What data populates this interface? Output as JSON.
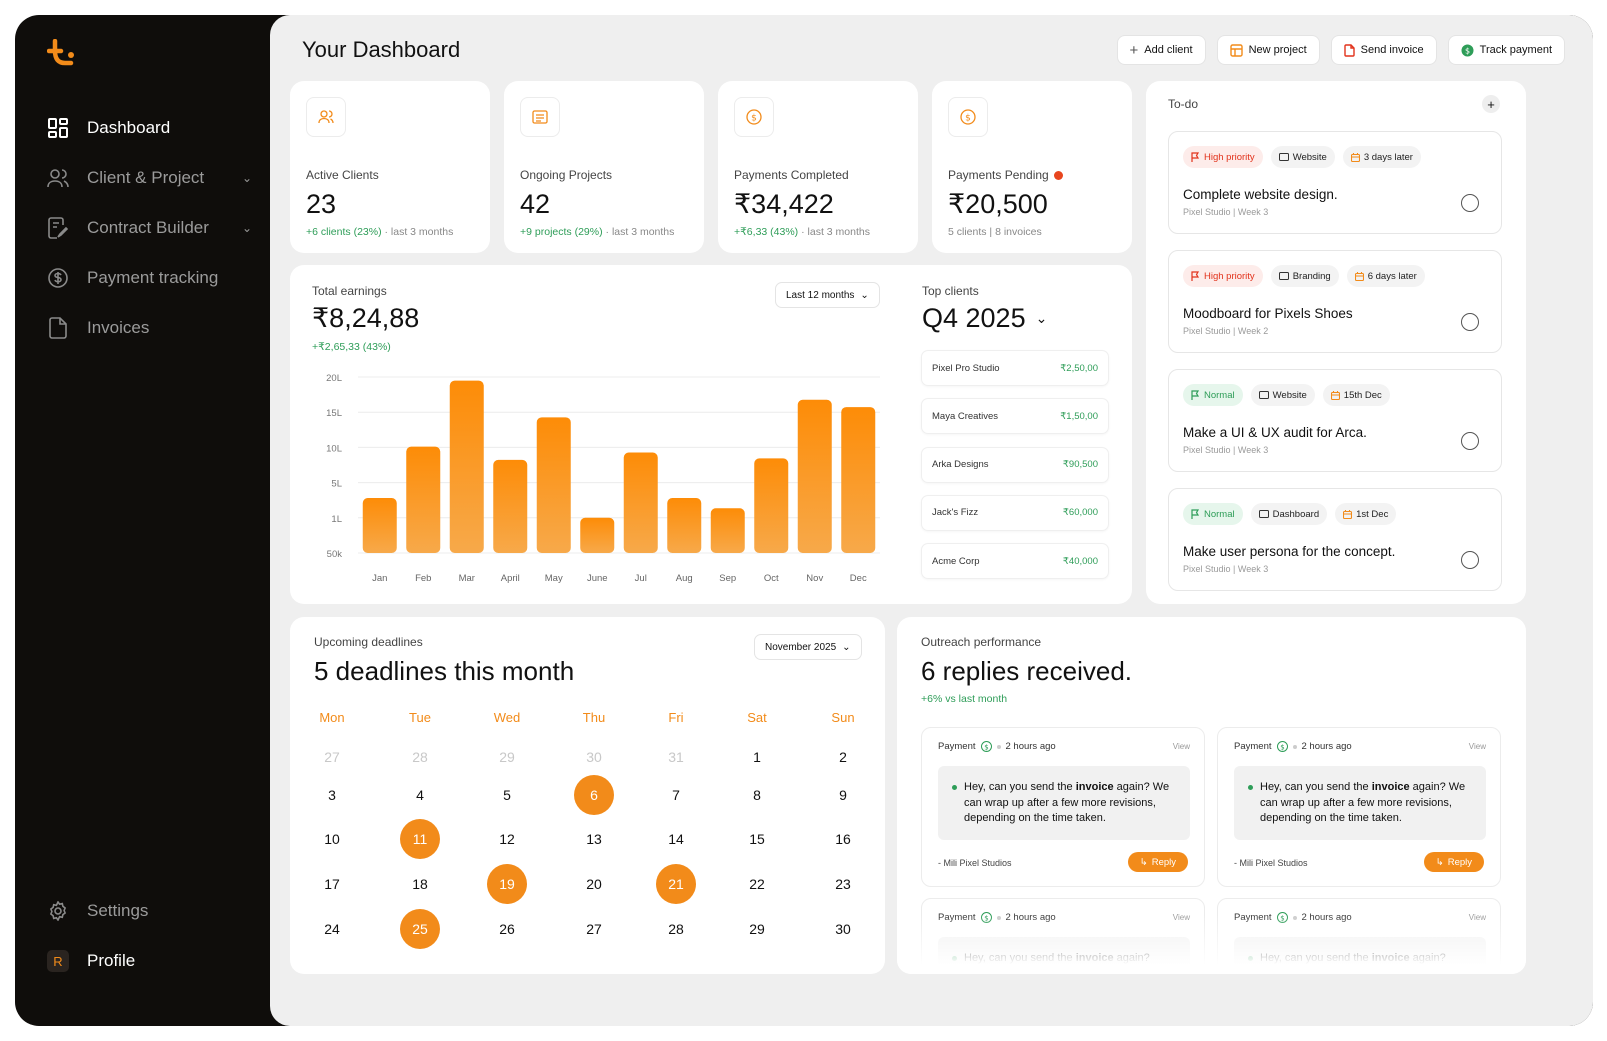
{
  "sidebar": {
    "items": [
      {
        "label": "Dashboard",
        "icon": "dashboard-icon"
      },
      {
        "label": "Client & Project",
        "icon": "users-icon"
      },
      {
        "label": "Contract Builder",
        "icon": "contract-icon"
      },
      {
        "label": "Payment tracking",
        "icon": "dollar-icon"
      },
      {
        "label": "Invoices",
        "icon": "file-icon"
      }
    ],
    "settings_label": "Settings",
    "profile_label": "Profile",
    "profile_initial": "R"
  },
  "header": {
    "title": "Your Dashboard",
    "actions": [
      "Add client",
      "New project",
      "Send invoice",
      "Track payment"
    ]
  },
  "stats": [
    {
      "label": "Active Clients",
      "value": "23",
      "delta": "+6 clients (23%)",
      "period": "last 3 months"
    },
    {
      "label": "Ongoing Projects",
      "value": "42",
      "delta": "+9 projects (29%)",
      "period": "last 3 months"
    },
    {
      "label": "Payments Completed",
      "value": "₹34,422",
      "delta": "+₹6,33 (43%)",
      "period": "last 3 months"
    },
    {
      "label": "Payments Pending",
      "value": "₹20,500",
      "note": "5 clients | 8 invoices"
    }
  ],
  "earnings": {
    "label": "Total earnings",
    "value": "₹8,24,88",
    "delta": "+₹2,65,33 (43%)",
    "range_select": "Last 12 months"
  },
  "chart_data": {
    "type": "bar",
    "categories": [
      "Jan",
      "Feb",
      "Mar",
      "April",
      "May",
      "June",
      "Jul",
      "Aug",
      "Sep",
      "Oct",
      "Nov",
      "Dec"
    ],
    "values": [
      3.5,
      10.5,
      19.5,
      8.7,
      14.5,
      0.8,
      9.7,
      3.5,
      2.1,
      8.9,
      16.9,
      15.9
    ],
    "yticks": [
      "50k",
      "1L",
      "5L",
      "10L",
      "15L",
      "20L"
    ],
    "ylim": [
      -4,
      20
    ],
    "grid": true,
    "colors": [
      "#fd8c07",
      "#f7a94a"
    ]
  },
  "top_clients": {
    "label": "Top clients",
    "period": "Q4 2025",
    "rows": [
      {
        "name": "Pixel Pro Studio",
        "amount": "₹2,50,00"
      },
      {
        "name": "Maya Creatives",
        "amount": "₹1,50,00"
      },
      {
        "name": "Arka Designs",
        "amount": "₹90,500"
      },
      {
        "name": "Jack's Fizz",
        "amount": "₹60,000"
      },
      {
        "name": "Acme Corp",
        "amount": "₹40,000"
      }
    ]
  },
  "todo": {
    "label": "To-do",
    "items": [
      {
        "priority": "High priority",
        "tag": "Website",
        "due": "3 days later",
        "title": "Complete website design.",
        "sub": "Pixel Studio | Week 3"
      },
      {
        "priority": "High priority",
        "tag": "Branding",
        "due": "6 days later",
        "title": "Moodboard for Pixels Shoes",
        "sub": "Pixel Studio | Week 2"
      },
      {
        "priority": "Normal",
        "tag": "Website",
        "due": "15th Dec",
        "title": "Make a UI & UX audit for Arca.",
        "sub": "Pixel Studio | Week 3"
      },
      {
        "priority": "Normal",
        "tag": "Dashboard",
        "due": "1st Dec",
        "title": "Make user persona for the concept.",
        "sub": "Pixel Studio | Week 3"
      }
    ]
  },
  "deadlines": {
    "label": "Upcoming deadlines",
    "title": "5 deadlines this month",
    "month_select": "November 2025",
    "weekdays": [
      "Mon",
      "Tue",
      "Wed",
      "Thu",
      "Fri",
      "Sat",
      "Sun"
    ],
    "weeks": [
      [
        "27",
        "28",
        "29",
        "30",
        "31",
        "1",
        "2"
      ],
      [
        "3",
        "4",
        "5",
        "6",
        "7",
        "8",
        "9"
      ],
      [
        "10",
        "11",
        "12",
        "13",
        "14",
        "15",
        "16"
      ],
      [
        "17",
        "18",
        "19",
        "20",
        "21",
        "22",
        "23"
      ],
      [
        "24",
        "25",
        "26",
        "27",
        "28",
        "29",
        "30"
      ]
    ],
    "muted": [
      "27",
      "28",
      "29",
      "30",
      "31"
    ],
    "highlighted": [
      "6",
      "11",
      "19",
      "21",
      "25"
    ]
  },
  "outreach": {
    "label": "Outreach performance",
    "title": "6 replies received.",
    "delta": "+6% vs last month",
    "messages": [
      {
        "type": "Payment",
        "time": "2 hours ago",
        "view": "View",
        "text_a": "Hey, can you send the ",
        "text_b": "invoice",
        "text_c": " again? We can wrap up after a few more revisions, depending on the time taken.",
        "from": "- Mili Pixel Studios",
        "reply": "Reply"
      },
      {
        "type": "Payment",
        "time": "2 hours ago",
        "view": "View",
        "text_a": "Hey, can you send the ",
        "text_b": "invoice",
        "text_c": " again? We can wrap up after a few more revisions, depending on the time taken.",
        "from": "- Mili Pixel Studios",
        "reply": "Reply"
      },
      {
        "type": "Payment",
        "time": "2 hours ago",
        "view": "View",
        "text_a": "Hey, can you send the ",
        "text_b": "invoice",
        "text_c": " again?",
        "from": "",
        "reply": ""
      },
      {
        "type": "Payment",
        "time": "2 hours ago",
        "view": "View",
        "text_a": "Hey, can you send the ",
        "text_b": "invoice",
        "text_c": " again?",
        "from": "",
        "reply": ""
      }
    ]
  },
  "colors": {
    "accent": "#f28b1a",
    "positive": "#2e9d58",
    "negative": "#e2321b",
    "sidebar": "#0f0d0b"
  }
}
